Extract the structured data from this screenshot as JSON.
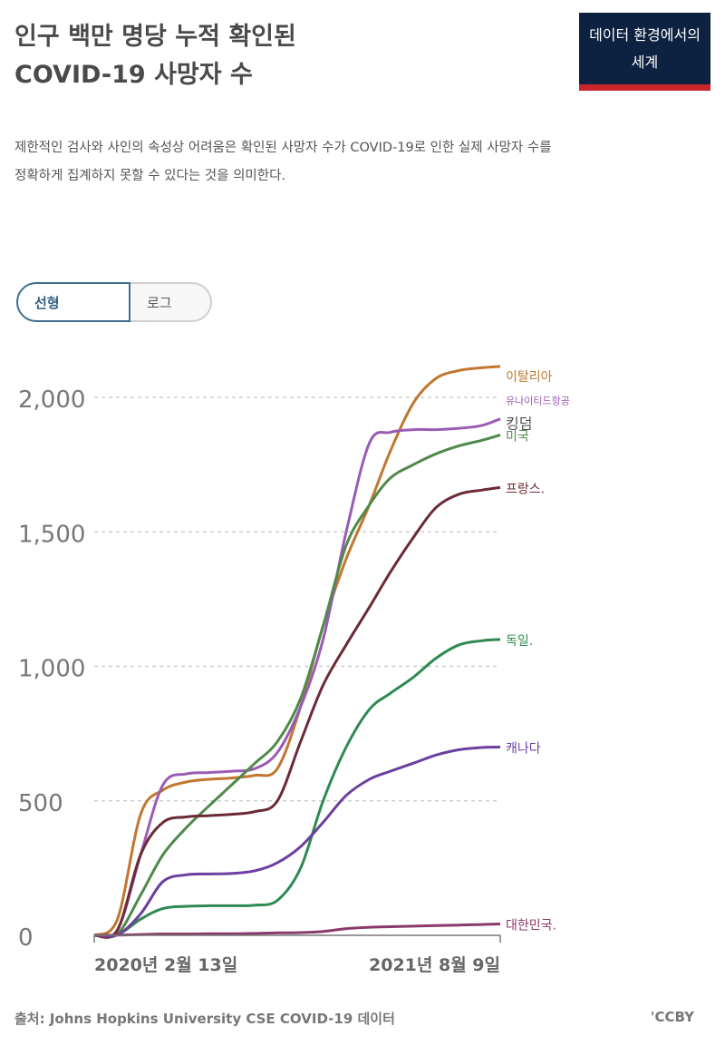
{
  "header": {
    "title_line1": "인구 백만 명당 누적 확인된",
    "title_line2": "COVID-19 사망자 수",
    "logo_line1": "데이터 환경에서의",
    "logo_line2": "세계",
    "subtitle_line1": "제한적인 검사와 사인의 속성상 어려움은 확인된 사망자 수가 COVID-19로 인한 실제 사망자 수를",
    "subtitle_line2": "정확하게 집계하지 못할 수 있다는 것을 의미한다."
  },
  "toggle": {
    "linear_label": "선형",
    "log_label": "로그",
    "selected": "linear"
  },
  "footer": {
    "source": "출처: Johns Hopkins University CSE COVID-19 데이터",
    "license": "'CCBY"
  },
  "chart_data": {
    "type": "line",
    "title": "인구 백만 명당 누적 확인된 COVID-19 사망자 수",
    "x_start_label": "2020년 2월 13일",
    "x_end_label": "2021년 8월 9일",
    "x": [
      "2020-02-13",
      "2020-03-15",
      "2020-04-15",
      "2020-05-15",
      "2020-06-15",
      "2020-07-15",
      "2020-08-15",
      "2020-09-15",
      "2020-10-15",
      "2020-11-15",
      "2020-12-15",
      "2021-01-15",
      "2021-02-15",
      "2021-03-15",
      "2021-04-15",
      "2021-05-15",
      "2021-06-15",
      "2021-07-15",
      "2021-08-09"
    ],
    "ylim": [
      0,
      2150
    ],
    "yticks": [
      0,
      500,
      1000,
      1500,
      2000
    ],
    "ytick_labels": [
      "0",
      "500",
      "1,000",
      "1,500",
      "2,000"
    ],
    "grid": true,
    "series": [
      {
        "name": "이탈리아",
        "color": "#c0772f",
        "values": [
          0,
          60,
          450,
          540,
          570,
          580,
          585,
          595,
          620,
          850,
          1150,
          1400,
          1600,
          1800,
          1980,
          2070,
          2100,
          2110,
          2115
        ]
      },
      {
        "name": "유나이티드항공 킹덤",
        "color": "#9a5bb5",
        "values": [
          0,
          20,
          300,
          560,
          600,
          605,
          610,
          620,
          680,
          850,
          1100,
          1500,
          1830,
          1870,
          1880,
          1880,
          1885,
          1895,
          1920
        ]
      },
      {
        "name": "미국",
        "color": "#4f8a4a",
        "values": [
          0,
          5,
          150,
          300,
          400,
          480,
          560,
          640,
          720,
          880,
          1150,
          1450,
          1600,
          1700,
          1750,
          1790,
          1820,
          1840,
          1860
        ]
      },
      {
        "name": "프랑스.",
        "color": "#6b2a36",
        "values": [
          0,
          20,
          300,
          420,
          440,
          445,
          450,
          460,
          500,
          720,
          930,
          1080,
          1220,
          1350,
          1480,
          1590,
          1640,
          1655,
          1665
        ]
      },
      {
        "name": "독일.",
        "color": "#2e8a50",
        "values": [
          0,
          2,
          60,
          100,
          108,
          110,
          110,
          112,
          130,
          250,
          500,
          700,
          840,
          900,
          960,
          1030,
          1080,
          1095,
          1100
        ]
      },
      {
        "name": "캐나다",
        "color": "#6b3fa0",
        "values": [
          0,
          2,
          80,
          200,
          225,
          228,
          230,
          240,
          270,
          330,
          420,
          520,
          580,
          610,
          640,
          670,
          690,
          698,
          700
        ]
      },
      {
        "name": "대한민국.",
        "color": "#8a3a6a",
        "values": [
          0,
          1,
          3,
          5,
          5,
          6,
          6,
          7,
          9,
          10,
          14,
          25,
          30,
          32,
          34,
          36,
          38,
          40,
          42
        ]
      }
    ]
  }
}
